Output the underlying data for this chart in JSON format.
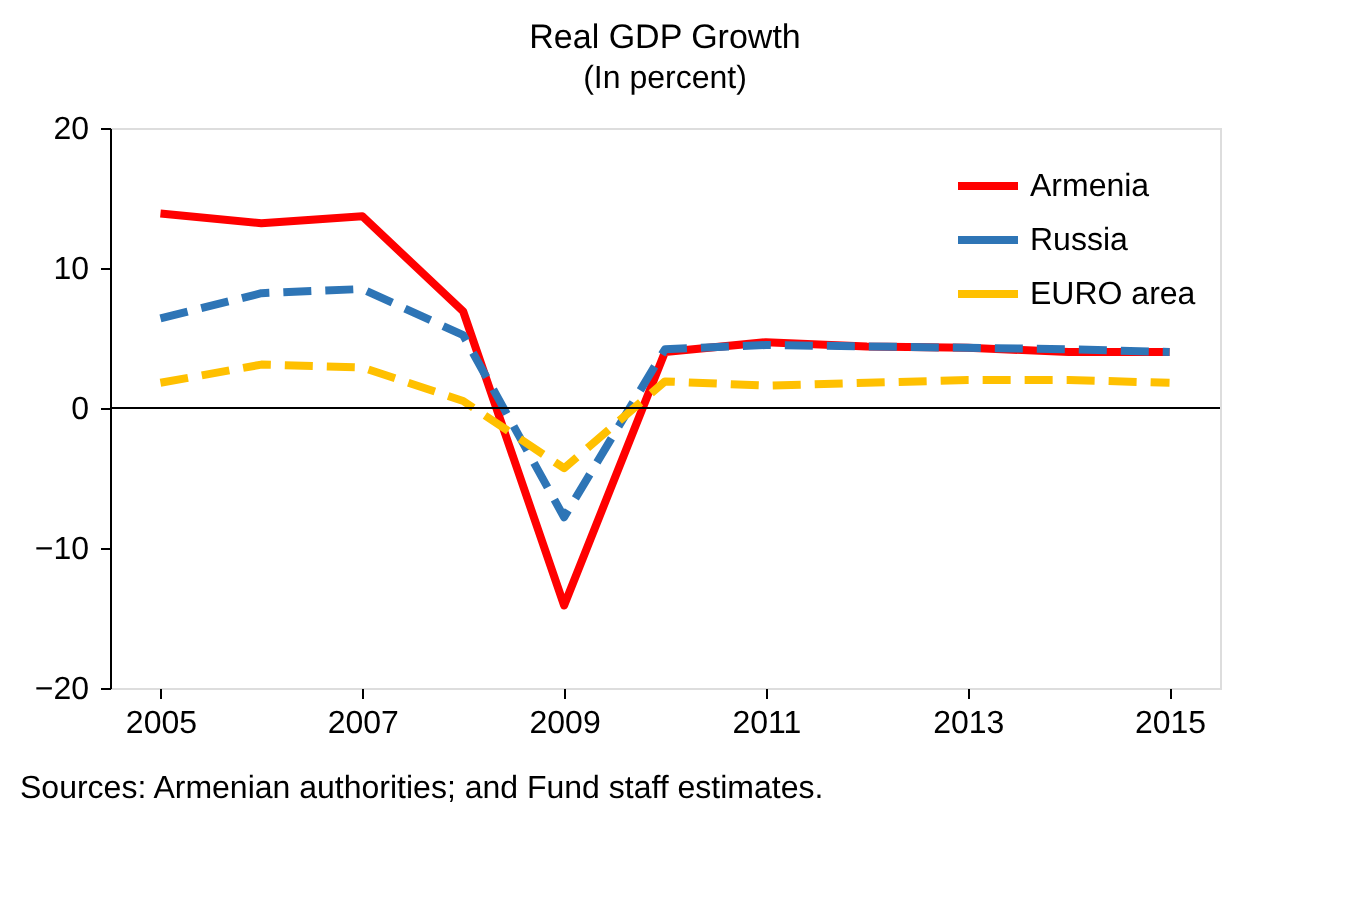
{
  "chart_data": {
    "type": "line",
    "title": "Real GDP Growth",
    "subtitle": "(In percent)",
    "x": [
      2005,
      2006,
      2007,
      2008,
      2009,
      2010,
      2011,
      2012,
      2013,
      2014,
      2015
    ],
    "series": [
      {
        "name": "Armenia",
        "color": "#ff0000",
        "line_style": "solid",
        "values": [
          13.9,
          13.2,
          13.7,
          6.9,
          -14.1,
          4.0,
          4.7,
          4.4,
          4.3,
          4.0,
          4.0
        ]
      },
      {
        "name": "Russia",
        "color": "#2e75b6",
        "line_style": "dashed",
        "values": [
          6.4,
          8.2,
          8.5,
          5.2,
          -7.8,
          4.2,
          4.5,
          4.4,
          4.3,
          4.2,
          4.0
        ]
      },
      {
        "name": "EURO area",
        "color": "#ffc000",
        "line_style": "dashed",
        "values": [
          1.8,
          3.1,
          2.9,
          0.5,
          -4.3,
          1.9,
          1.6,
          1.8,
          2.0,
          2.0,
          1.8
        ]
      }
    ],
    "xlim": [
      2004.5,
      2015.5
    ],
    "xticks": [
      2005,
      2007,
      2009,
      2011,
      2013,
      2015
    ],
    "ylim": [
      -20,
      20
    ],
    "yticks": [
      -20,
      -10,
      0,
      10,
      20
    ],
    "ref_lines": [
      {
        "axis": "y",
        "value": 0,
        "color": "#000000"
      }
    ],
    "grid": false,
    "legend": "top right",
    "marker": "none",
    "annotations": [
      "Sources: Armenian authorities; and Fund staff estimates."
    ]
  }
}
